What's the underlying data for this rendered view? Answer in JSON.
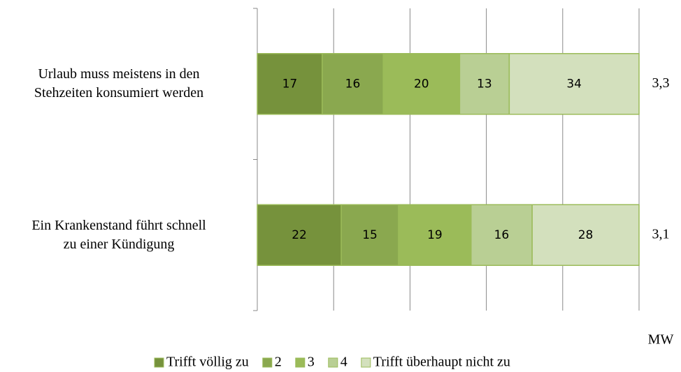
{
  "chart_data": {
    "type": "stacked-barh",
    "categories": [
      "Urlaub muss meistens in den\nStehzeiten konsumiert werden",
      "Ein Krankenstand führt schnell\nzu einer Kündigung"
    ],
    "series": [
      {
        "name": "Trifft völlig zu",
        "color": "#76923c",
        "values": [
          17,
          22
        ]
      },
      {
        "name": "2",
        "color": "#8aa84f",
        "values": [
          16,
          15
        ]
      },
      {
        "name": "3",
        "color": "#9bbb59",
        "values": [
          20,
          19
        ]
      },
      {
        "name": "4",
        "color": "#b9cf94",
        "values": [
          13,
          16
        ]
      },
      {
        "name": "Trifft überhaupt nicht zu",
        "color": "#d3e0bd",
        "values": [
          34,
          28
        ]
      }
    ],
    "xlim": [
      0,
      100
    ],
    "xticks": [
      0,
      20,
      40,
      60,
      80,
      100
    ],
    "grid": true,
    "legend": "bottom",
    "annotations": {
      "title": "MW",
      "values": [
        "3,3",
        "3,1"
      ]
    }
  }
}
